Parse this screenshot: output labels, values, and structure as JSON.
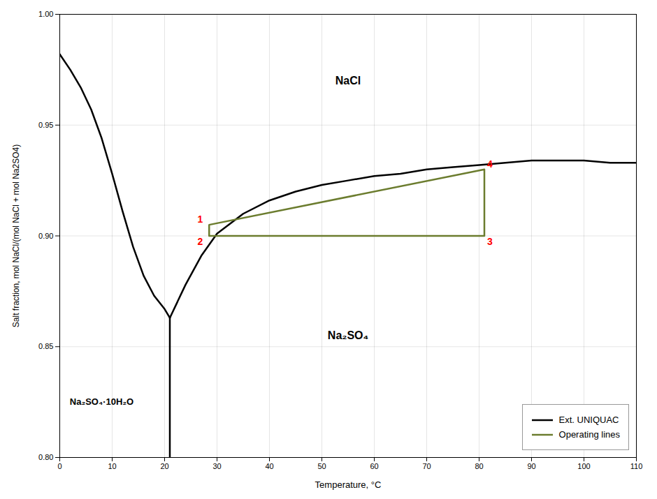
{
  "chart_data": {
    "type": "line",
    "xlabel": "Temperature, °C",
    "ylabel": "Salt fraction, mol NaCl/(mol NaCl + mol Na2SO4)",
    "xlim": [
      0,
      110
    ],
    "ylim": [
      0.8,
      1.0
    ],
    "xticks": [
      0,
      10,
      20,
      30,
      40,
      50,
      60,
      70,
      80,
      90,
      100,
      110
    ],
    "yticks": [
      {
        "value": 0.8,
        "label": "0.80"
      },
      {
        "value": 0.85,
        "label": "0.85"
      },
      {
        "value": 0.9,
        "label": "0.90"
      },
      {
        "value": 0.95,
        "label": "0.95"
      },
      {
        "value": 1.0,
        "label": "1.00"
      }
    ],
    "grid": true,
    "legend": "lower right",
    "series": [
      {
        "name": "Ext. UNIQUAC",
        "color": "#000000",
        "segments": [
          {
            "x": [
              0,
              2,
              4,
              6,
              8,
              10,
              12,
              14,
              16,
              18,
              19,
              20,
              21.0
            ],
            "values": [
              0.982,
              0.975,
              0.967,
              0.957,
              0.944,
              0.928,
              0.911,
              0.895,
              0.882,
              0.873,
              0.87,
              0.867,
              0.863
            ]
          },
          {
            "x": [
              21.0,
              21.0
            ],
            "values": [
              0.863,
              0.8
            ]
          },
          {
            "x": [
              21.0,
              24,
              27,
              30,
              35,
              40,
              45,
              50,
              55,
              60,
              65,
              70,
              75,
              80,
              85,
              90,
              95,
              100,
              105,
              110
            ],
            "values": [
              0.863,
              0.878,
              0.891,
              0.901,
              0.91,
              0.916,
              0.92,
              0.923,
              0.925,
              0.927,
              0.928,
              0.93,
              0.931,
              0.932,
              0.933,
              0.934,
              0.934,
              0.934,
              0.933,
              0.933
            ]
          }
        ]
      },
      {
        "name": "Operating lines",
        "color": "#6b7c2e",
        "x": [
          28.5,
          28.5,
          81.0,
          81.0,
          28.5
        ],
        "values": [
          0.9,
          0.905,
          0.93,
          0.9,
          0.9
        ]
      }
    ],
    "point_labels": {
      "color": "red",
      "labels": [
        {
          "text": "1",
          "x": 28.5,
          "y": 0.905
        },
        {
          "text": "2",
          "x": 28.5,
          "y": 0.9
        },
        {
          "text": "3",
          "x": 81.0,
          "y": 0.9
        },
        {
          "text": "4",
          "x": 81.0,
          "y": 0.93
        }
      ]
    },
    "annotations": [
      {
        "text": "NaCl",
        "x": 55,
        "y": 0.97
      },
      {
        "text": "Na₂SO₄",
        "x": 55,
        "y": 0.855
      },
      {
        "text": "Na₂SO₄·10H₂O",
        "x": 8,
        "y": 0.825
      }
    ]
  }
}
